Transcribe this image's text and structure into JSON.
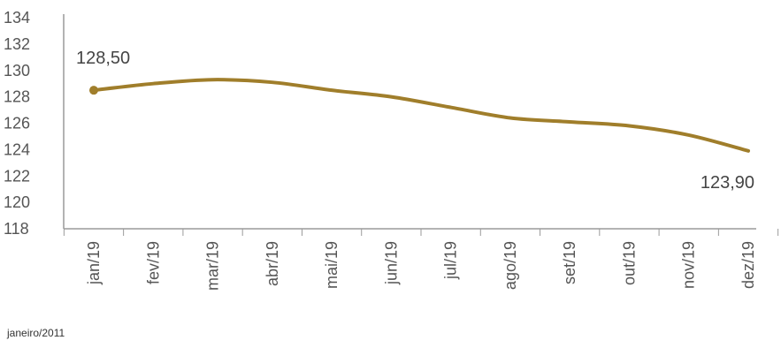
{
  "chart_data": {
    "type": "line",
    "categories": [
      "jan/19",
      "fev/19",
      "mar/19",
      "abr/19",
      "mai/19",
      "jun/19",
      "jul/19",
      "ago/19",
      "set/19",
      "out/19",
      "nov/19",
      "dez/19"
    ],
    "series": [
      {
        "values": [
          128.5,
          129.0,
          129.3,
          129.1,
          128.5,
          128.0,
          127.2,
          126.4,
          126.1,
          125.8,
          125.1,
          123.9
        ]
      }
    ],
    "data_labels": [
      {
        "index": 0,
        "text": "128,50"
      },
      {
        "index": 11,
        "text": "123,90"
      }
    ],
    "yticks": [
      "134",
      "132",
      "130",
      "128",
      "126",
      "124",
      "122",
      "120",
      "118"
    ],
    "ylim": [
      118,
      134
    ],
    "grid": false,
    "line_color": "#A07E2B"
  },
  "footnote": "janeiro/2011"
}
